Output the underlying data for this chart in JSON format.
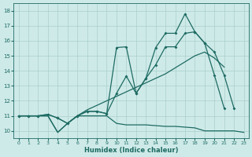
{
  "xlabel": "Humidex (Indice chaleur)",
  "bg_color": "#ceeae8",
  "grid_color": "#aacfcc",
  "line_color": "#1e6b63",
  "xlim": [
    -0.5,
    23.5
  ],
  "ylim": [
    9.5,
    18.5
  ],
  "yticks": [
    10,
    11,
    12,
    13,
    14,
    15,
    16,
    17,
    18
  ],
  "xticks": [
    0,
    1,
    2,
    3,
    4,
    5,
    6,
    7,
    8,
    9,
    10,
    11,
    12,
    13,
    14,
    15,
    16,
    17,
    18,
    19,
    20,
    21,
    22,
    23
  ],
  "line1_no_marker": {
    "x": [
      0,
      1,
      2,
      3,
      4,
      5,
      6,
      7,
      8,
      9,
      10,
      11,
      12,
      13,
      14,
      15,
      16,
      17,
      18,
      19,
      20,
      21,
      22,
      23
    ],
    "y": [
      11,
      11,
      11,
      11,
      9.9,
      10.5,
      11.0,
      11.0,
      11.0,
      11.0,
      10.5,
      10.4,
      10.4,
      10.4,
      10.35,
      10.3,
      10.3,
      10.25,
      10.2,
      10.0,
      10.0,
      10.0,
      10.0,
      9.9
    ]
  },
  "line2_no_marker": {
    "x": [
      0,
      1,
      2,
      3,
      4,
      5,
      6,
      7,
      8,
      9,
      10,
      11,
      12,
      13,
      14,
      15,
      16,
      17,
      18,
      19,
      20,
      21
    ],
    "y": [
      11,
      11,
      11,
      11,
      9.9,
      10.5,
      11.0,
      11.4,
      11.7,
      12.0,
      12.3,
      12.6,
      12.9,
      13.2,
      13.5,
      13.8,
      14.2,
      14.6,
      15.0,
      15.25,
      14.85,
      14.25
    ]
  },
  "line3_marker": {
    "x": [
      0,
      1,
      2,
      3,
      4,
      5,
      6,
      7,
      8,
      9,
      10,
      11,
      12,
      13,
      14,
      15,
      16,
      17,
      18,
      19,
      20,
      21,
      22
    ],
    "y": [
      11,
      11,
      11,
      11.1,
      10.85,
      10.5,
      11.0,
      11.3,
      11.3,
      11.15,
      12.5,
      13.65,
      12.5,
      13.5,
      14.4,
      15.6,
      15.6,
      16.5,
      16.6,
      15.85,
      15.25,
      13.7,
      11.5
    ]
  },
  "line4_marker": {
    "x": [
      0,
      1,
      2,
      3,
      4,
      5,
      6,
      7,
      8,
      9,
      10,
      11,
      12,
      13,
      14,
      15,
      16,
      17,
      18,
      19,
      20,
      21
    ],
    "y": [
      11,
      11,
      11,
      11.1,
      10.85,
      10.5,
      11.0,
      11.3,
      11.3,
      11.15,
      15.55,
      15.6,
      12.5,
      13.5,
      15.55,
      16.5,
      16.5,
      17.8,
      16.6,
      15.85,
      13.7,
      11.5
    ]
  }
}
